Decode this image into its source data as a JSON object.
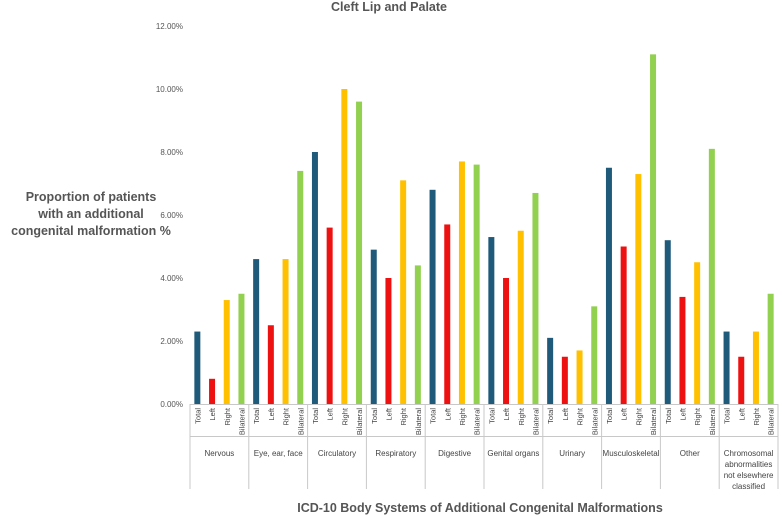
{
  "chart_data": {
    "type": "bar",
    "title": "Cleft Lip and Palate",
    "ylabel_lines": [
      "Proportion of patients",
      "with an additional",
      "congenital malformation   %"
    ],
    "xlabel": "ICD-10 Body Systems of Additional Congenital Malformations",
    "ylim": [
      0,
      12
    ],
    "y_ticks": [
      "0.00%",
      "2.00%",
      "4.00%",
      "6.00%",
      "8.00%",
      "10.00%",
      "12.00%"
    ],
    "grid": false,
    "legend": "none",
    "subcategories": [
      "Total",
      "Left",
      "Right",
      "Bilateral"
    ],
    "colors": [
      "#1f5a7a",
      "#ee1111",
      "#ffc000",
      "#92d050"
    ],
    "groups": [
      {
        "label": [
          "Nervous"
        ],
        "values": [
          2.3,
          0.8,
          3.3,
          3.5
        ]
      },
      {
        "label": [
          "Eye, ear, face"
        ],
        "values": [
          4.6,
          2.5,
          4.6,
          7.4
        ]
      },
      {
        "label": [
          "Circulatory"
        ],
        "values": [
          8.0,
          5.6,
          10.0,
          9.6
        ]
      },
      {
        "label": [
          "Respiratory"
        ],
        "values": [
          4.9,
          4.0,
          7.1,
          4.4
        ]
      },
      {
        "label": [
          "Digestive"
        ],
        "values": [
          6.8,
          5.7,
          7.7,
          7.6
        ]
      },
      {
        "label": [
          "Genital organs"
        ],
        "values": [
          5.3,
          4.0,
          5.5,
          6.7
        ]
      },
      {
        "label": [
          "Urinary"
        ],
        "values": [
          2.1,
          1.5,
          1.7,
          3.1
        ]
      },
      {
        "label": [
          "Musculoskeletal"
        ],
        "values": [
          7.5,
          5.0,
          7.3,
          11.1
        ]
      },
      {
        "label": [
          "Other"
        ],
        "values": [
          5.2,
          3.4,
          4.5,
          8.1
        ]
      },
      {
        "label": [
          "Chromosomal",
          "abnormalities",
          "not elsewhere",
          "classified"
        ],
        "values": [
          2.3,
          1.5,
          2.3,
          3.5
        ]
      }
    ]
  }
}
